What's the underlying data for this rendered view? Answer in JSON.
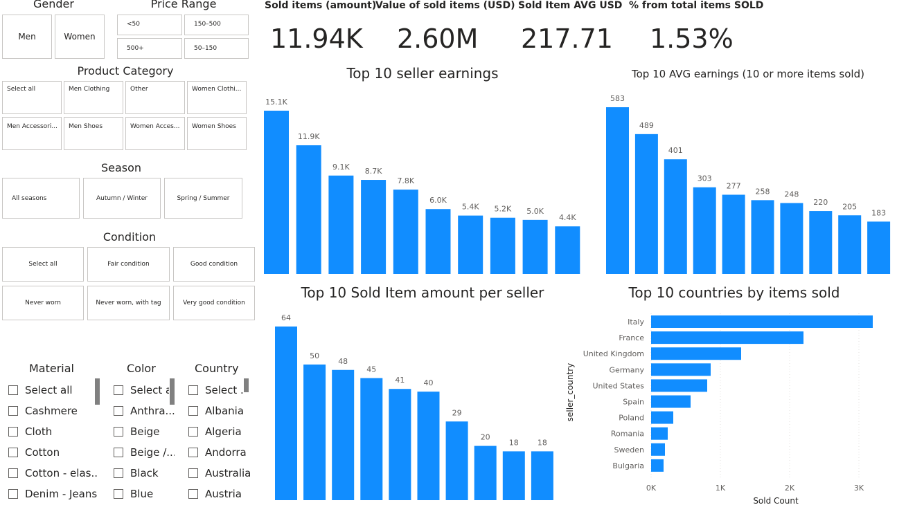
{
  "gender": {
    "title": "Gender",
    "options": [
      "Men",
      "Women"
    ]
  },
  "price": {
    "title": "Price Range",
    "options": [
      "<50",
      "150–500",
      "500+",
      "50–150"
    ]
  },
  "category": {
    "title": "Product Category",
    "options": [
      "Select all",
      "Men Clothing",
      "Other",
      "Women Clothi...",
      "Men Accessori...",
      "Men Shoes",
      "Women Acces...",
      "Women Shoes"
    ]
  },
  "season": {
    "title": "Season",
    "options": [
      "All seasons",
      "Autumn / Winter",
      "Spring / Summer"
    ]
  },
  "condition": {
    "title": "Condition",
    "options": [
      "Select all",
      "Fair condition",
      "Good condition",
      "Never worn",
      "Never worn, with tag",
      "Very good condition"
    ]
  },
  "material": {
    "title": "Material",
    "items": [
      "Select all",
      "Cashmere",
      "Cloth",
      "Cotton",
      "Cotton - elas...",
      "Denim - Jeans"
    ]
  },
  "color": {
    "title": "Color",
    "items": [
      "Select a",
      "Anthra...",
      "Beige",
      "Beige /...",
      "Black",
      "Blue"
    ]
  },
  "country": {
    "title": "Country",
    "items": [
      "Select ...",
      "Albania",
      "Algeria",
      "Andorra",
      "Australia",
      "Austria"
    ]
  },
  "kpis": [
    {
      "label": "Sold items (amount)",
      "value": "11.94K"
    },
    {
      "label": "Value of sold items (USD)",
      "value": "2.60M"
    },
    {
      "label": "Sold Item AVG USD",
      "value": "217.71"
    },
    {
      "label": "% from total items SOLD",
      "value": "1.53%"
    }
  ],
  "colors": {
    "bar": "#118DFF",
    "border": "#C8C6C4",
    "text": "#252423",
    "muted": "#605E5C"
  },
  "chart_data": [
    {
      "type": "bar",
      "title": "Top 10 seller earnings",
      "values": [
        15100,
        11900,
        9100,
        8700,
        7800,
        6000,
        5400,
        5200,
        5000,
        4400
      ],
      "labels": [
        "15.1K",
        "11.9K",
        "9.1K",
        "8.7K",
        "7.8K",
        "6.0K",
        "5.4K",
        "5.2K",
        "5.0K",
        "4.4K"
      ]
    },
    {
      "type": "bar",
      "title": "Top 10 AVG earnings (10 or more items sold)",
      "values": [
        583,
        489,
        401,
        303,
        277,
        258,
        248,
        220,
        205,
        183
      ],
      "labels": [
        "583",
        "489",
        "401",
        "303",
        "277",
        "258",
        "248",
        "220",
        "205",
        "183"
      ]
    },
    {
      "type": "bar",
      "title": "Top 10 Sold Item amount per seller",
      "values": [
        64,
        50,
        48,
        45,
        41,
        40,
        29,
        20,
        18,
        18
      ],
      "labels": [
        "64",
        "50",
        "48",
        "45",
        "41",
        "40",
        "29",
        "20",
        "18",
        "18"
      ]
    },
    {
      "type": "bar",
      "orientation": "horizontal",
      "title": "Top 10 countries by items sold",
      "categories": [
        "Italy",
        "France",
        "United Kingdom",
        "Germany",
        "United States",
        "Spain",
        "Poland",
        "Romania",
        "Sweden",
        "Bulgaria"
      ],
      "values": [
        3200,
        2200,
        1300,
        860,
        810,
        570,
        320,
        240,
        200,
        180
      ],
      "xlabel": "Sold Count",
      "ylabel": "seller_country",
      "xlim": [
        0,
        3200
      ],
      "xticks": [
        0,
        1000,
        2000,
        3000
      ],
      "xtick_labels": [
        "0K",
        "1K",
        "2K",
        "3K"
      ]
    }
  ]
}
